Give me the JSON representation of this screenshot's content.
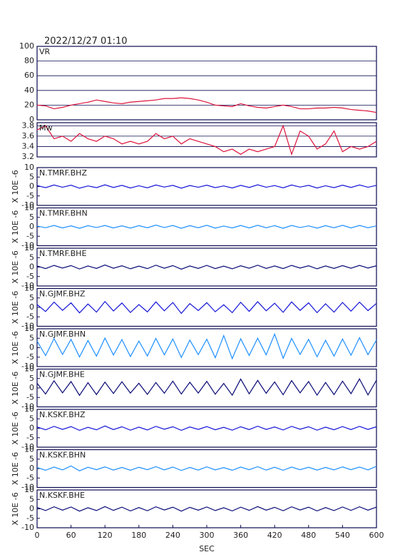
{
  "title": "2022/12/27 01:10",
  "chart_data": [
    {
      "type": "line",
      "title": "VR",
      "xlim": [
        0,
        600
      ],
      "ylim": [
        0,
        100
      ],
      "yticks": [
        0,
        20,
        40,
        60,
        80,
        100
      ],
      "grid": true,
      "x": [
        0,
        15,
        30,
        45,
        60,
        75,
        90,
        105,
        120,
        135,
        150,
        165,
        180,
        195,
        210,
        225,
        240,
        255,
        270,
        285,
        300,
        315,
        330,
        345,
        360,
        375,
        390,
        405,
        420,
        435,
        450,
        465,
        480,
        495,
        510,
        525,
        540,
        555,
        570,
        585,
        600
      ],
      "series": [
        {
          "color": "#dc143c",
          "values": [
            20,
            19,
            15,
            17,
            20,
            22,
            24,
            27,
            25,
            23,
            22,
            24,
            25,
            26,
            27,
            29,
            29,
            30,
            29,
            27,
            24,
            20,
            19,
            18,
            22,
            19,
            17,
            16,
            18,
            20,
            18,
            15,
            15,
            16,
            16,
            17,
            16,
            14,
            13,
            12,
            10
          ]
        }
      ]
    },
    {
      "type": "line",
      "title": "Mw",
      "xlim": [
        0,
        600
      ],
      "ylim": [
        3.2,
        3.86
      ],
      "yticks": [
        3.2,
        3.4,
        3.6,
        3.8
      ],
      "grid": true,
      "x": [
        0,
        15,
        30,
        45,
        60,
        75,
        90,
        105,
        120,
        135,
        150,
        165,
        180,
        195,
        210,
        225,
        240,
        255,
        270,
        285,
        300,
        315,
        330,
        345,
        360,
        375,
        390,
        405,
        420,
        435,
        450,
        465,
        480,
        495,
        510,
        525,
        540,
        555,
        570,
        585,
        600
      ],
      "series": [
        {
          "color": "#dc143c",
          "values": [
            3.72,
            3.8,
            3.55,
            3.6,
            3.5,
            3.65,
            3.55,
            3.5,
            3.6,
            3.55,
            3.45,
            3.5,
            3.45,
            3.5,
            3.65,
            3.55,
            3.6,
            3.45,
            3.55,
            3.5,
            3.45,
            3.4,
            3.3,
            3.35,
            3.25,
            3.35,
            3.3,
            3.35,
            3.4,
            3.8,
            3.25,
            3.7,
            3.6,
            3.35,
            3.45,
            3.7,
            3.3,
            3.4,
            3.35,
            3.4,
            3.5
          ]
        }
      ]
    },
    {
      "type": "line",
      "title": "N.TMRF.BHZ",
      "ylabel": "X 10E -6",
      "xlim": [
        0,
        600
      ],
      "ylim": [
        -10,
        10
      ],
      "yticks": [
        -10,
        -5,
        0,
        5,
        10
      ],
      "x": [
        0,
        15,
        30,
        45,
        60,
        75,
        90,
        105,
        120,
        135,
        150,
        165,
        180,
        195,
        210,
        225,
        240,
        255,
        270,
        285,
        300,
        315,
        330,
        345,
        360,
        375,
        390,
        405,
        420,
        435,
        450,
        465,
        480,
        495,
        510,
        525,
        540,
        555,
        570,
        585,
        600
      ],
      "series": [
        {
          "color": "#1414d8",
          "values": [
            0.5,
            -0.6,
            0.8,
            -0.4,
            0.7,
            -0.9,
            0.3,
            -0.6,
            0.9,
            -0.5,
            0.6,
            -0.8,
            0.4,
            -0.7,
            0.8,
            -0.3,
            0.6,
            -0.9,
            0.5,
            -0.4,
            0.7,
            -0.6,
            0.3,
            -0.8,
            0.6,
            -0.5,
            0.9,
            -0.4,
            0.5,
            -0.7,
            0.8,
            -0.3,
            0.6,
            -0.8,
            0.4,
            -0.6,
            0.7,
            -0.5,
            0.8,
            -0.4,
            0.6
          ]
        }
      ]
    },
    {
      "type": "line",
      "title": "N.TMRF.BHN",
      "ylabel": "X 10E -6",
      "xlim": [
        0,
        600
      ],
      "ylim": [
        -10,
        10
      ],
      "yticks": [
        -10,
        -5,
        0,
        5,
        10
      ],
      "x": [
        0,
        15,
        30,
        45,
        60,
        75,
        90,
        105,
        120,
        135,
        150,
        165,
        180,
        195,
        210,
        225,
        240,
        255,
        270,
        285,
        300,
        315,
        330,
        345,
        360,
        375,
        390,
        405,
        420,
        435,
        450,
        465,
        480,
        495,
        510,
        525,
        540,
        555,
        570,
        585,
        600
      ],
      "series": [
        {
          "color": "#1e90ff",
          "values": [
            0.4,
            -0.5,
            0.7,
            -0.6,
            0.5,
            -0.8,
            0.6,
            -0.4,
            0.7,
            -0.6,
            0.5,
            -0.7,
            0.6,
            -0.5,
            0.9,
            -0.4,
            0.7,
            -0.8,
            0.6,
            -0.5,
            0.8,
            -0.7,
            0.4,
            -0.6,
            0.7,
            -0.6,
            0.8,
            -0.5,
            0.6,
            -0.8,
            0.7,
            -0.4,
            0.5,
            -0.7,
            0.6,
            -0.5,
            0.8,
            -0.6,
            0.7,
            -0.5,
            0.5
          ]
        }
      ]
    },
    {
      "type": "line",
      "title": "N.TMRF.BHE",
      "ylabel": "X 10E -6",
      "xlim": [
        0,
        600
      ],
      "ylim": [
        -10,
        10
      ],
      "yticks": [
        -10,
        -5,
        0,
        5,
        10
      ],
      "x": [
        0,
        15,
        30,
        45,
        60,
        75,
        90,
        105,
        120,
        135,
        150,
        165,
        180,
        195,
        210,
        225,
        240,
        255,
        270,
        285,
        300,
        315,
        330,
        345,
        360,
        375,
        390,
        405,
        420,
        435,
        450,
        465,
        480,
        495,
        510,
        525,
        540,
        555,
        570,
        585,
        600
      ],
      "series": [
        {
          "color": "#0a0a78",
          "values": [
            0.6,
            -0.8,
            0.9,
            -0.5,
            0.8,
            -1.0,
            0.6,
            -0.7,
            1.1,
            -0.6,
            0.7,
            -0.9,
            0.5,
            -0.8,
            1.0,
            -0.6,
            0.8,
            -1.1,
            0.6,
            -0.7,
            0.9,
            -0.8,
            0.5,
            -0.9,
            0.7,
            -0.6,
            1.0,
            -0.7,
            0.6,
            -0.8,
            0.9,
            -0.5,
            0.7,
            -0.9,
            0.6,
            -0.7,
            0.8,
            -0.6,
            0.9,
            -0.5,
            0.7
          ]
        }
      ]
    },
    {
      "type": "line",
      "title": "N.GJMF.BHZ",
      "ylabel": "X 10E -6",
      "xlim": [
        0,
        600
      ],
      "ylim": [
        -10,
        10
      ],
      "yticks": [
        -10,
        -5,
        0,
        5,
        10
      ],
      "x": [
        0,
        15,
        30,
        45,
        60,
        75,
        90,
        105,
        120,
        135,
        150,
        165,
        180,
        195,
        210,
        225,
        240,
        255,
        270,
        285,
        300,
        315,
        330,
        345,
        360,
        375,
        390,
        405,
        420,
        435,
        450,
        465,
        480,
        495,
        510,
        525,
        540,
        555,
        570,
        585,
        600
      ],
      "series": [
        {
          "color": "#1414d8",
          "values": [
            1.5,
            -2.2,
            2.8,
            -1.6,
            2.4,
            -2.9,
            1.8,
            -2.5,
            3.1,
            -1.9,
            2.3,
            -2.7,
            1.5,
            -2.4,
            2.9,
            -1.8,
            2.6,
            -3.2,
            2.0,
            -1.7,
            2.5,
            -2.3,
            1.4,
            -2.8,
            2.7,
            -2.1,
            3.0,
            -1.8,
            2.2,
            -2.6,
            2.9,
            -1.6,
            2.4,
            -2.8,
            1.9,
            -2.5,
            2.6,
            -2.0,
            2.8,
            -1.7,
            2.1
          ]
        }
      ]
    },
    {
      "type": "line",
      "title": "N.GJMF.BHN",
      "ylabel": "X 10E -6",
      "xlim": [
        0,
        600
      ],
      "ylim": [
        -10,
        10
      ],
      "yticks": [
        -10,
        -5,
        0,
        5,
        10
      ],
      "x": [
        0,
        15,
        30,
        45,
        60,
        75,
        90,
        105,
        120,
        135,
        150,
        165,
        180,
        195,
        210,
        225,
        240,
        255,
        270,
        285,
        300,
        315,
        330,
        345,
        360,
        375,
        390,
        405,
        420,
        435,
        450,
        465,
        480,
        495,
        510,
        525,
        540,
        555,
        570,
        585,
        600
      ],
      "series": [
        {
          "color": "#1e90ff",
          "values": [
            3.5,
            -4.2,
            4.8,
            -3.6,
            4.4,
            -4.9,
            3.8,
            -4.5,
            5.1,
            -3.9,
            4.3,
            -4.7,
            3.5,
            -4.4,
            4.9,
            -3.8,
            4.6,
            -5.2,
            4.0,
            -3.7,
            4.5,
            -5.3,
            6.4,
            -5.8,
            4.7,
            -4.1,
            5.0,
            -3.8,
            7.2,
            -5.6,
            4.9,
            -3.6,
            4.4,
            -4.8,
            3.9,
            -4.5,
            4.6,
            -4.0,
            5.3,
            -3.7,
            4.1
          ]
        }
      ]
    },
    {
      "type": "line",
      "title": "N.GJMF.BHE",
      "ylabel": "X 10E -6",
      "xlim": [
        0,
        600
      ],
      "ylim": [
        -10,
        10
      ],
      "yticks": [
        -10,
        -5,
        0,
        5,
        10
      ],
      "x": [
        0,
        15,
        30,
        45,
        60,
        75,
        90,
        105,
        120,
        135,
        150,
        165,
        180,
        195,
        210,
        225,
        240,
        255,
        270,
        285,
        300,
        315,
        330,
        345,
        360,
        375,
        390,
        405,
        420,
        435,
        450,
        465,
        480,
        495,
        510,
        525,
        540,
        555,
        570,
        585,
        600
      ],
      "series": [
        {
          "color": "#0a0a78",
          "values": [
            2.5,
            -3.2,
            3.8,
            -2.6,
            3.4,
            -3.9,
            2.8,
            -3.5,
            3.1,
            -2.9,
            3.3,
            -2.7,
            2.5,
            -3.4,
            2.9,
            -2.8,
            3.6,
            -3.2,
            3.0,
            -2.7,
            3.5,
            -3.3,
            2.4,
            -3.8,
            4.7,
            -3.1,
            4.0,
            -2.8,
            3.2,
            -3.6,
            3.9,
            -2.6,
            3.4,
            -3.8,
            2.9,
            -3.5,
            3.6,
            -3.0,
            4.8,
            -3.7,
            4.1
          ]
        }
      ]
    },
    {
      "type": "line",
      "title": "N.KSKF.BHZ",
      "ylabel": "X 10E -6",
      "xlim": [
        0,
        600
      ],
      "ylim": [
        -10,
        10
      ],
      "yticks": [
        -10,
        -5,
        0,
        5,
        10
      ],
      "x": [
        0,
        15,
        30,
        45,
        60,
        75,
        90,
        105,
        120,
        135,
        150,
        165,
        180,
        195,
        210,
        225,
        240,
        255,
        270,
        285,
        300,
        315,
        330,
        345,
        360,
        375,
        390,
        405,
        420,
        435,
        450,
        465,
        480,
        495,
        510,
        525,
        540,
        555,
        570,
        585,
        600
      ],
      "series": [
        {
          "color": "#1414d8",
          "values": [
            0.7,
            -0.8,
            1.0,
            -0.6,
            0.9,
            -1.1,
            0.5,
            -0.8,
            1.2,
            -0.7,
            0.8,
            -1.0,
            0.6,
            -0.9,
            1.0,
            -0.5,
            0.8,
            -1.1,
            0.7,
            -0.6,
            0.9,
            -0.8,
            0.5,
            -1.0,
            0.8,
            -0.7,
            1.1,
            -0.6,
            0.7,
            -0.9,
            1.0,
            -0.5,
            0.8,
            -1.0,
            0.6,
            -0.8,
            0.9,
            -0.7,
            1.0,
            -0.6,
            0.8
          ]
        }
      ]
    },
    {
      "type": "line",
      "title": "N.KSKF.BHN",
      "ylabel": "X 10E -6",
      "xlim": [
        0,
        600
      ],
      "ylim": [
        -10,
        10
      ],
      "yticks": [
        -10,
        -5,
        0,
        5,
        10
      ],
      "x": [
        0,
        15,
        30,
        45,
        60,
        75,
        90,
        105,
        120,
        135,
        150,
        165,
        180,
        195,
        210,
        225,
        240,
        255,
        270,
        285,
        300,
        315,
        330,
        345,
        360,
        375,
        390,
        405,
        420,
        435,
        450,
        465,
        480,
        495,
        510,
        525,
        540,
        555,
        570,
        585,
        600
      ],
      "series": [
        {
          "color": "#1e90ff",
          "values": [
            0.6,
            -0.9,
            0.8,
            -0.7,
            1.4,
            -1.2,
            0.7,
            -0.6,
            0.9,
            -0.8,
            0.6,
            -0.9,
            0.7,
            -0.6,
            1.0,
            -0.7,
            0.8,
            -1.0,
            0.6,
            -0.8,
            0.9,
            -0.7,
            0.5,
            -0.9,
            0.8,
            -0.6,
            1.0,
            -0.8,
            0.7,
            -0.9,
            0.8,
            -0.6,
            0.7,
            -0.8,
            0.6,
            -0.7,
            0.9,
            -0.6,
            0.8,
            -0.7,
            1.2
          ]
        }
      ]
    },
    {
      "type": "line",
      "title": "N.KSKF.BHE",
      "ylabel": "X 10E -6",
      "xlim": [
        0,
        600
      ],
      "ylim": [
        -10,
        10
      ],
      "yticks": [
        -10,
        -5,
        0,
        5,
        10
      ],
      "xlabel": "SEC",
      "xticks": [
        0,
        60,
        120,
        180,
        240,
        300,
        360,
        420,
        480,
        540,
        600
      ],
      "x": [
        0,
        15,
        30,
        45,
        60,
        75,
        90,
        105,
        120,
        135,
        150,
        165,
        180,
        195,
        210,
        225,
        240,
        255,
        270,
        285,
        300,
        315,
        330,
        345,
        360,
        375,
        390,
        405,
        420,
        435,
        450,
        465,
        480,
        495,
        510,
        525,
        540,
        555,
        570,
        585,
        600
      ],
      "series": [
        {
          "color": "#0a0a78",
          "values": [
            0.8,
            -0.9,
            1.1,
            -0.7,
            1.0,
            -1.2,
            0.6,
            -0.9,
            1.2,
            -0.8,
            0.9,
            -1.1,
            0.7,
            -1.0,
            1.1,
            -0.6,
            0.9,
            -1.2,
            0.8,
            -0.7,
            1.0,
            -0.9,
            0.6,
            -1.1,
            0.9,
            -0.8,
            1.2,
            -0.7,
            0.8,
            -1.0,
            1.1,
            -0.6,
            0.9,
            -1.1,
            0.7,
            -0.9,
            1.0,
            -0.8,
            1.1,
            -0.7,
            0.9
          ]
        }
      ]
    }
  ]
}
